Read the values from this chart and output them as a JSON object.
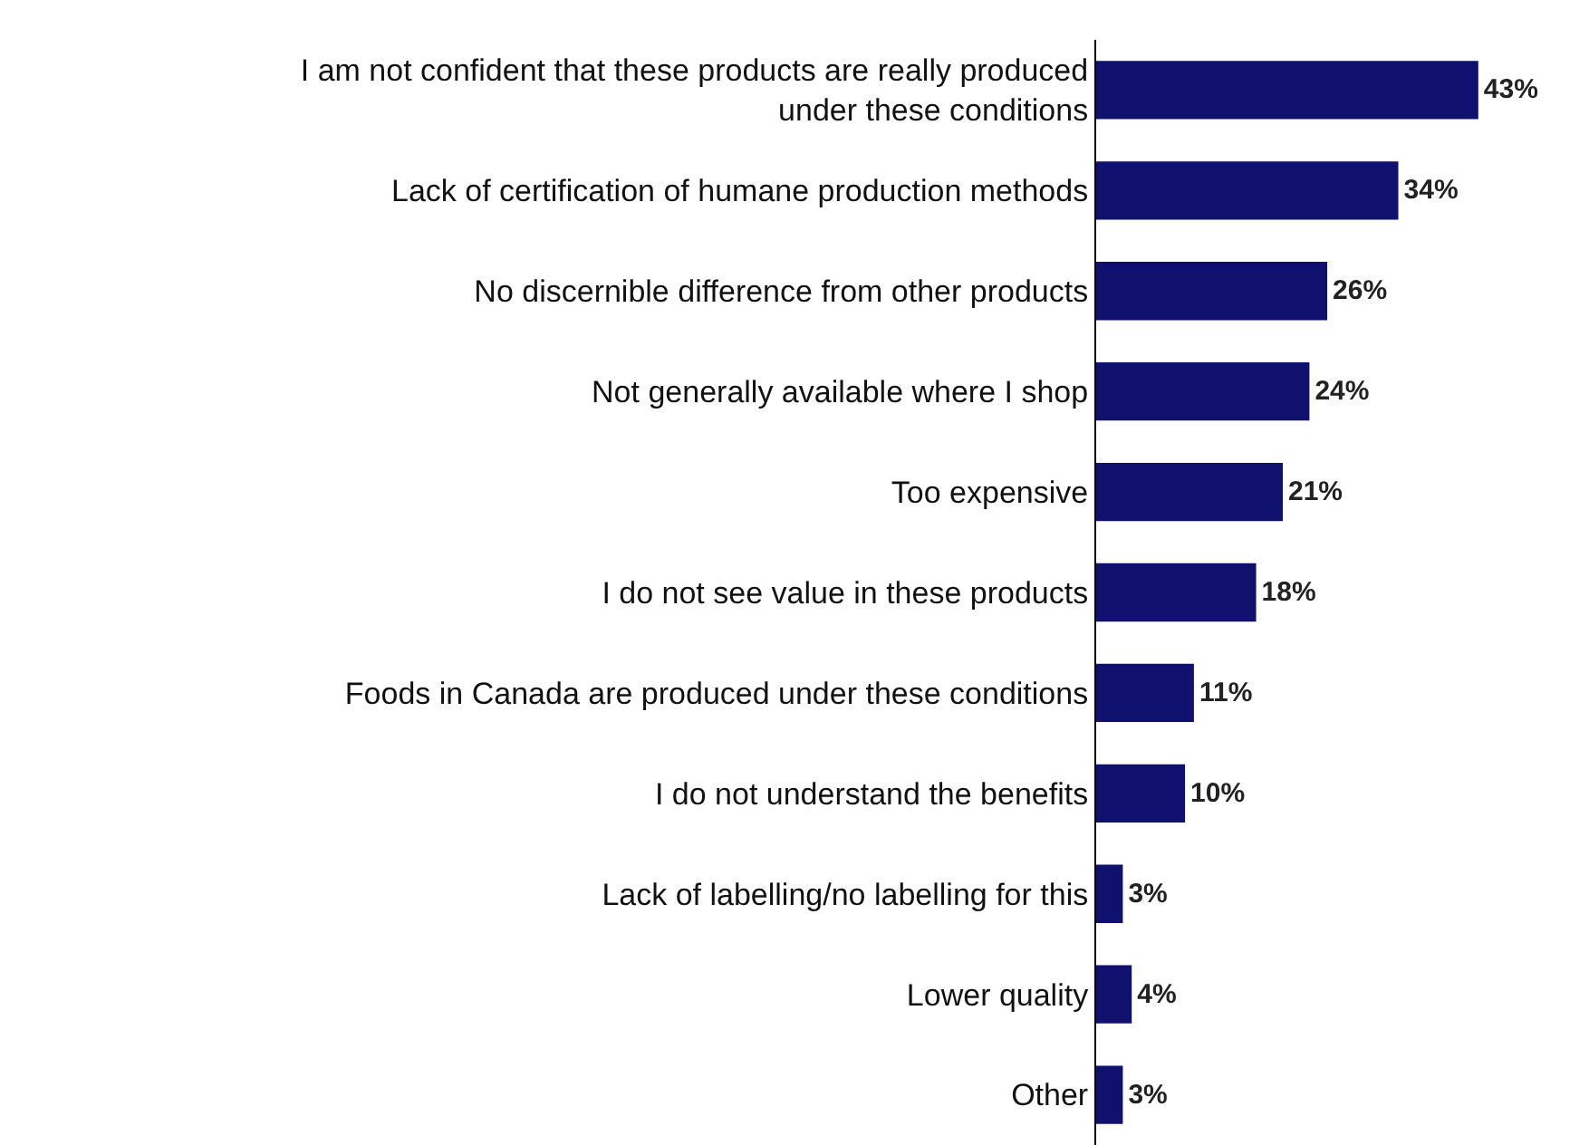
{
  "chart_data": {
    "type": "bar",
    "orientation": "horizontal",
    "categories": [
      "I am not confident that these products are really produced\nunder these conditions",
      "Lack of certification of humane production methods",
      "No discernible difference from other products",
      "Not generally available where I shop",
      "Too expensive",
      "I do not see value in these products",
      "Foods in Canada are produced under these conditions",
      "I do not understand the benefits",
      "Lack of labelling/no labelling for this",
      "Lower quality",
      "Other"
    ],
    "values": [
      43,
      34,
      26,
      24,
      21,
      18,
      11,
      10,
      3,
      4,
      3
    ],
    "value_labels": [
      "43%",
      "34%",
      "26%",
      "24%",
      "21%",
      "18%",
      "11%",
      "10%",
      "3%",
      "4%",
      "3%"
    ],
    "color": "#10106e"
  }
}
